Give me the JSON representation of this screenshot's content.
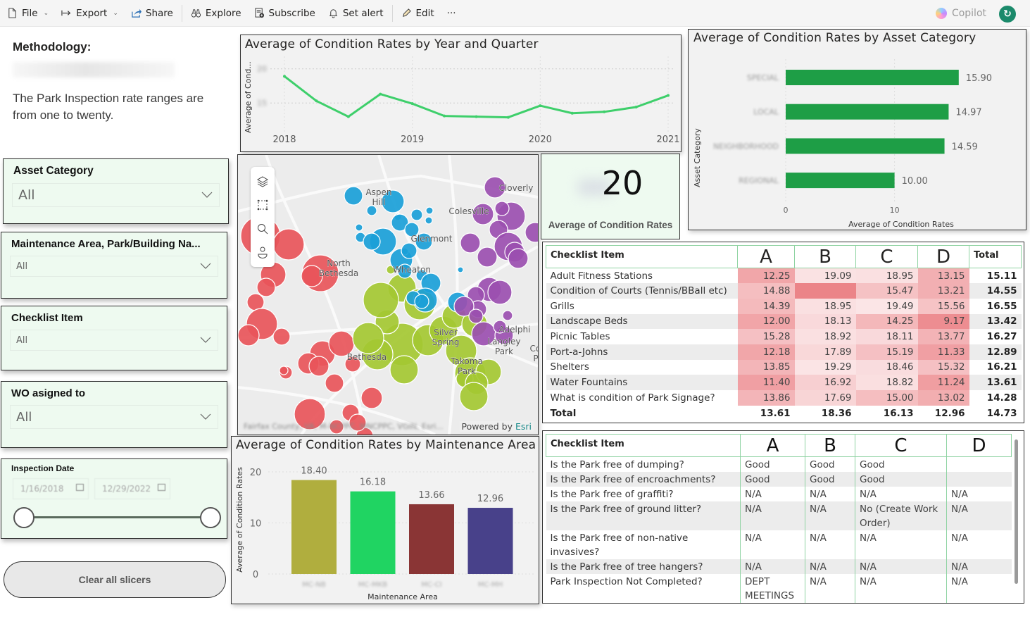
{
  "toolbar": {
    "items": [
      {
        "label": "File",
        "icon": "file-icon",
        "has_menu": true
      },
      {
        "label": "Export",
        "icon": "export-arrow-icon",
        "has_menu": true
      },
      {
        "label": "Share",
        "icon": "share-icon",
        "has_menu": false
      },
      {
        "label": "Explore",
        "icon": "binoculars-icon",
        "has_menu": false
      },
      {
        "label": "Subscribe",
        "icon": "subscribe-icon",
        "has_menu": false
      },
      {
        "label": "Set alert",
        "icon": "bell-icon",
        "has_menu": false
      },
      {
        "label": "Edit",
        "icon": "pencil-icon",
        "has_menu": false
      }
    ],
    "more": "···",
    "copilot": "Copilot",
    "avatar_icon": "refresh-icon"
  },
  "methodology": {
    "title": "Methodology:",
    "text": "The Park Inspection rate ranges are from one to twenty."
  },
  "slicers": [
    {
      "title": "Asset Category",
      "value": "All"
    },
    {
      "title": "Maintenance Area, Park/Building Na...",
      "value": "All"
    },
    {
      "title": "Checklist Item",
      "value": "All"
    },
    {
      "title": "WO asigned to",
      "value": "All"
    }
  ],
  "date_slicer": {
    "title": "Inspection Date",
    "start": "1/16/2018",
    "end": "12/29/2022",
    "range_selected": [
      0,
      1
    ]
  },
  "clear_button": "Clear all slicers",
  "card": {
    "value": "20",
    "label": "Average of Condition Rates"
  },
  "map": {
    "labels": [
      "Aspen Hill",
      "Cloverly",
      "Colesville",
      "Glenmont",
      "North Bethesda",
      "Wheaton",
      "Silver Spring",
      "Adelphi",
      "Langley Park",
      "Bethesda",
      "Takoma Park",
      "Col P."
    ],
    "attribution": "Fairfax County, VA, M-NCPPC, MNCPPC, VGIN, Esri...",
    "powered_by": "Powered by",
    "esri": "Esri",
    "tools": [
      "layers-icon",
      "lasso-select-icon",
      "search-icon",
      "locate-person-icon"
    ],
    "colors": {
      "red": "#e8555a",
      "blue": "#1aa0d8",
      "green": "#a4c832",
      "purple": "#9b4fb0"
    }
  },
  "chart_data": [
    {
      "type": "line",
      "title": "Average of Condition Rates by Year and Quarter",
      "xlabel": "",
      "ylabel": "Average of Cond...",
      "x_ticks": [
        "2018",
        "2019",
        "2020",
        "2021"
      ],
      "x": [
        "2018 Q1",
        "2018 Q2",
        "2018 Q3",
        "2018 Q4",
        "2019 Q1",
        "2019 Q2",
        "2019 Q3",
        "2019 Q4",
        "2020 Q1",
        "2020 Q2",
        "2020 Q3",
        "2020 Q4",
        "2021 Q1"
      ],
      "values": [
        18.9,
        15.3,
        13.0,
        16.3,
        14.9,
        13.1,
        13.0,
        12.9,
        14.6,
        13.5,
        13.7,
        14.4,
        16.1
      ],
      "y_ticks": [
        15,
        20
      ],
      "ylim": [
        11,
        21
      ],
      "color": "#3ecf6b",
      "grid": true
    },
    {
      "type": "bar",
      "orientation": "horizontal",
      "title": "Average of Condition Rates by Asset Category",
      "xlabel": "Average of Condition Rates",
      "ylabel": "Asset Category",
      "categories": [
        "SPECIAL",
        "LOCAL",
        "NEIGHBORHOOD",
        "REGIONAL"
      ],
      "values": [
        15.9,
        14.97,
        14.59,
        10.0
      ],
      "labels": [
        "15.90",
        "14.97",
        "14.59",
        "10.00"
      ],
      "x_ticks": [
        0,
        10
      ],
      "xlim": [
        0,
        18.5
      ],
      "color": "#1e9e46",
      "grid": true
    },
    {
      "type": "bar",
      "title": "Average of Condition Rates by Maintenance Area",
      "xlabel": "Maintenance Area",
      "ylabel": "Average of Condition Rates",
      "categories": [
        "MC-NB",
        "MC-MKB",
        "MC-CI",
        "MC-MH"
      ],
      "values": [
        18.4,
        16.18,
        13.66,
        12.96
      ],
      "labels": [
        "18.40",
        "16.18",
        "13.66",
        "12.96"
      ],
      "colors": [
        "#b0ae3e",
        "#20d462",
        "#8a3535",
        "#48418a"
      ],
      "y_ticks": [
        0,
        10,
        20
      ],
      "ylim": [
        0,
        22
      ],
      "grid": true
    }
  ],
  "matrix": {
    "header": {
      "item": "Checklist Item",
      "cols": [
        "A",
        "B",
        "C",
        "D"
      ],
      "total": "Total"
    },
    "rows": [
      {
        "item": "Adult Fitness Stations",
        "vals": [
          "12.25",
          "19.09",
          "18.95",
          "13.15"
        ],
        "total": "15.11"
      },
      {
        "item": "Condition of Courts (Tennis/BBall etc)",
        "vals": [
          "14.88",
          "",
          "15.47",
          "13.21"
        ],
        "total": "14.55"
      },
      {
        "item": "Grills",
        "vals": [
          "14.39",
          "18.95",
          "19.49",
          "15.56"
        ],
        "total": "16.55"
      },
      {
        "item": "Landscape Beds",
        "vals": [
          "12.00",
          "18.13",
          "14.25",
          "9.17"
        ],
        "total": "13.42"
      },
      {
        "item": "Picnic Tables",
        "vals": [
          "15.28",
          "18.92",
          "18.11",
          "13.77"
        ],
        "total": "16.27"
      },
      {
        "item": "Port-a-Johns",
        "vals": [
          "12.18",
          "17.89",
          "15.19",
          "11.33"
        ],
        "total": "12.89"
      },
      {
        "item": "Shelters",
        "vals": [
          "13.85",
          "19.29",
          "18.46",
          "15.32"
        ],
        "total": "16.21"
      },
      {
        "item": "Water Fountains",
        "vals": [
          "11.40",
          "16.92",
          "18.82",
          "11.24"
        ],
        "total": "13.61"
      },
      {
        "item": "What is condition of Park Signage?",
        "vals": [
          "13.86",
          "17.69",
          "15.00",
          "13.02"
        ],
        "total": "14.28"
      }
    ],
    "total_row": {
      "item": "Total",
      "vals": [
        "13.61",
        "18.36",
        "16.13",
        "12.96"
      ],
      "total": "14.73"
    }
  },
  "text_table": {
    "header": {
      "item": "Checklist Item",
      "cols": [
        "A",
        "B",
        "C",
        "D"
      ]
    },
    "rows": [
      {
        "item": "Is the Park free of dumping?",
        "vals": [
          "Good",
          "Good",
          "Good",
          ""
        ]
      },
      {
        "item": "Is the Park free of encroachments?",
        "vals": [
          "Good",
          "Good",
          "Good",
          ""
        ]
      },
      {
        "item": "Is the Park free of graffiti?",
        "vals": [
          "N/A",
          "N/A",
          "N/A",
          "N/A"
        ]
      },
      {
        "item": "Is the Park free of ground litter?",
        "vals": [
          "N/A",
          "N/A",
          "No (Create Work Order)",
          "N/A"
        ]
      },
      {
        "item": "Is the Park free of non-native invasives?",
        "vals": [
          "N/A",
          "N/A",
          "N/A",
          "N/A"
        ]
      },
      {
        "item": "Is the Park free of tree hangers?",
        "vals": [
          "N/A",
          "N/A",
          "N/A",
          "N/A"
        ]
      },
      {
        "item": "Park Inspection Not Completed?",
        "vals": [
          "DEPT MEETINGS &",
          "N/A",
          "N/A",
          "N/A"
        ]
      }
    ]
  }
}
